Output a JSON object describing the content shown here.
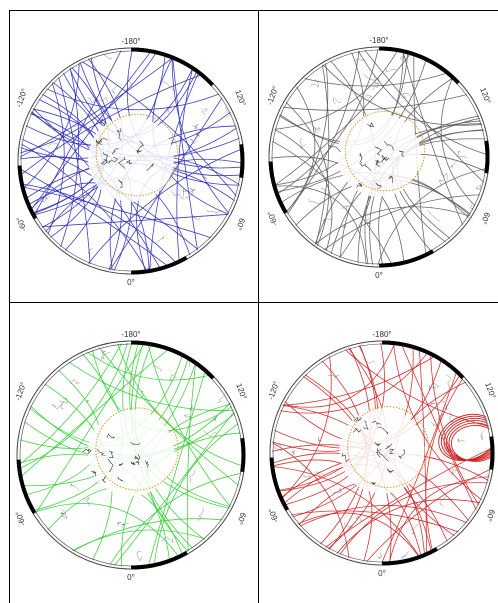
{
  "panels": [
    {
      "id": "top-left",
      "track_color": "#2b2bb8",
      "track_count": 48,
      "track_seed": 3,
      "labels": {
        "top": "-180°",
        "left": "-120°",
        "right": "120°",
        "lower_left": "-60°",
        "lower_right": "60°",
        "bottom": "0°"
      }
    },
    {
      "id": "top-right",
      "track_color": "#5a5a5a",
      "track_count": 40,
      "track_seed": 7,
      "labels": {
        "top": "-180°",
        "left": "-120°",
        "right": "120°",
        "lower_left": "-60°",
        "lower_right": "60°",
        "bottom": "0°"
      }
    },
    {
      "id": "bottom-left",
      "track_color": "#33cc33",
      "track_count": 34,
      "track_seed": 11,
      "labels": {
        "top": "-180°",
        "left": "-120°",
        "right": "120°",
        "lower_left": "-60°",
        "lower_right": "60°",
        "bottom": "0°"
      }
    },
    {
      "id": "bottom-right",
      "track_color": "#cc2222",
      "track_count": 40,
      "track_seed": 17,
      "loops": true,
      "labels": {
        "top": "-180°",
        "left": "-120°",
        "right": "120°",
        "lower_left": "-60°",
        "lower_right": "60°",
        "bottom": "0°"
      }
    }
  ],
  "colors": {
    "frame": "#000000",
    "coast": "#3a3a3a",
    "latitude_ring": "#d79a2a",
    "border_segment": "#000000"
  }
}
